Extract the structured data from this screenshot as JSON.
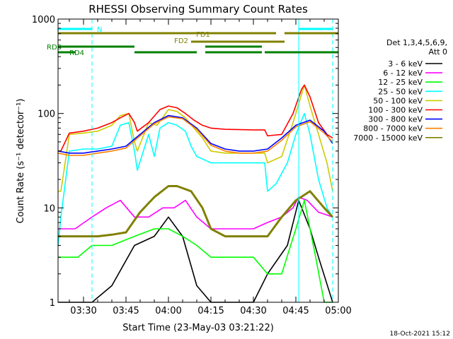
{
  "chart_data": {
    "type": "line",
    "title": "RHESSI Observing Summary Count Rates",
    "xlabel": "Start Time (23-May-03 03:21:22)",
    "ylabel": "Count Rate (s⁻¹ detector⁻¹)",
    "x_unit": "minutes",
    "xlim": [
      "03:21",
      "05:00"
    ],
    "ylim": [
      1,
      1000
    ],
    "yscale": "log",
    "x_ticks": [
      "03:30",
      "03:45",
      "04:00",
      "04:15",
      "04:30",
      "04:45",
      "05:00"
    ],
    "y_ticks": [
      "1",
      "10",
      "100",
      "1000"
    ],
    "legend_header": [
      "Det 1,3,4,5,6,9,",
      "Att 0"
    ],
    "legend_position": "right",
    "timestamp": "18-Oct-2021 15:12",
    "spans": [
      {
        "label": "N",
        "color": "#00ffff",
        "segments": [
          [
            "03:21",
            "03:33"
          ],
          [
            "04:46",
            "04:58"
          ]
        ],
        "vlines": [
          "03:21",
          "03:33",
          "04:46",
          "04:58"
        ]
      },
      {
        "label": "FD1",
        "color": "#808000",
        "segments": [
          [
            "03:21",
            "04:38"
          ],
          [
            "04:41",
            "05:00"
          ]
        ]
      },
      {
        "label": "FD2",
        "color": "#808000",
        "segments": [
          [
            "04:08",
            "04:41"
          ]
        ]
      },
      {
        "label": "RD8",
        "color": "#008000",
        "segments": [
          [
            "03:21",
            "03:48"
          ],
          [
            "04:13",
            "04:33"
          ]
        ]
      },
      {
        "label": "RD4",
        "color": "#008000",
        "segments": [
          [
            "03:21",
            "03:27"
          ],
          [
            "03:48",
            "04:10"
          ],
          [
            "04:13",
            "04:33"
          ],
          [
            "04:34",
            "05:00"
          ]
        ]
      }
    ],
    "series": [
      {
        "name": "3 - 6 keV",
        "color": "#000000",
        "x": [
          "03:21",
          "03:33",
          "03:40",
          "03:48",
          "03:55",
          "04:00",
          "04:05",
          "04:10",
          "04:15",
          "04:20",
          "04:30",
          "04:35",
          "04:42",
          "04:46",
          "04:50",
          "04:53",
          "04:58"
        ],
        "values": [
          1.0,
          1.0,
          1.5,
          4.0,
          5.0,
          8.0,
          5.0,
          1.5,
          1.0,
          1.0,
          1.0,
          2.0,
          4.0,
          12.0,
          6.0,
          3.0,
          1.0
        ]
      },
      {
        "name": "6 - 12 keV",
        "color": "#ff00ff",
        "x": [
          "03:21",
          "03:27",
          "03:33",
          "03:38",
          "03:43",
          "03:48",
          "03:53",
          "03:58",
          "04:02",
          "04:06",
          "04:10",
          "04:15",
          "04:20",
          "04:30",
          "04:35",
          "04:40",
          "04:44",
          "04:46",
          "04:49",
          "04:53",
          "04:58"
        ],
        "values": [
          6.0,
          6.0,
          8.0,
          10.0,
          12.0,
          8.0,
          8.0,
          10.0,
          10.0,
          12.0,
          8.0,
          6.0,
          6.0,
          6.0,
          7.0,
          8.0,
          10.0,
          13.0,
          12.0,
          9.0,
          8.0
        ]
      },
      {
        "name": "12 - 25 keV",
        "color": "#00ff00",
        "x": [
          "03:21",
          "03:28",
          "03:33",
          "03:40",
          "03:48",
          "03:55",
          "04:00",
          "04:05",
          "04:10",
          "04:15",
          "04:20",
          "04:30",
          "04:35",
          "04:40",
          "04:45",
          "04:48",
          "04:52",
          "04:55",
          "04:58"
        ],
        "values": [
          3.0,
          3.0,
          4.0,
          4.0,
          5.0,
          6.0,
          6.0,
          5.0,
          4.0,
          3.0,
          3.0,
          3.0,
          2.0,
          2.0,
          6.0,
          12.0,
          3.0,
          1.0,
          1.0
        ]
      },
      {
        "name": "25 - 50 keV",
        "color": "#00ffff",
        "x": [
          "03:21",
          "03:22",
          "03:25",
          "03:30",
          "03:35",
          "03:40",
          "03:43",
          "03:46",
          "03:48",
          "03:49",
          "03:53",
          "03:55",
          "03:57",
          "04:00",
          "04:03",
          "04:06",
          "04:08",
          "04:10",
          "04:13",
          "04:15",
          "04:20",
          "04:30",
          "04:34",
          "04:35",
          "04:38",
          "04:42",
          "04:45",
          "04:48",
          "04:50",
          "04:53",
          "04:56",
          "04:58"
        ],
        "values": [
          4.0,
          8.0,
          40.0,
          42.0,
          42.0,
          45.0,
          75.0,
          80.0,
          40.0,
          25.0,
          60.0,
          35.0,
          70.0,
          80.0,
          75.0,
          65.0,
          45.0,
          35.0,
          32.0,
          30.0,
          30.0,
          30.0,
          30.0,
          15.0,
          18.0,
          30.0,
          60.0,
          100.0,
          60.0,
          20.0,
          10.0,
          8.0
        ]
      },
      {
        "name": "50 - 100 keV",
        "color": "#cccc00",
        "x": [
          "03:21",
          "03:22",
          "03:25",
          "03:30",
          "03:35",
          "03:40",
          "03:43",
          "03:46",
          "03:48",
          "03:49",
          "03:53",
          "03:56",
          "04:00",
          "04:03",
          "04:06",
          "04:09",
          "04:12",
          "04:15",
          "04:20",
          "04:30",
          "04:34",
          "04:35",
          "04:40",
          "04:44",
          "04:48",
          "04:50",
          "04:53",
          "04:56",
          "04:58"
        ],
        "values": [
          15.0,
          15.0,
          60.0,
          62.0,
          65.0,
          75.0,
          95.0,
          100.0,
          50.0,
          40.0,
          80.0,
          75.0,
          110.0,
          105.0,
          90.0,
          70.0,
          55.0,
          40.0,
          38.0,
          38.0,
          38.0,
          30.0,
          35.0,
          80.0,
          200.0,
          120.0,
          60.0,
          30.0,
          15.0
        ]
      },
      {
        "name": "100 - 300 keV",
        "color": "#ff0000",
        "x": [
          "03:21",
          "03:22",
          "03:25",
          "03:30",
          "03:35",
          "03:40",
          "03:43",
          "03:46",
          "03:48",
          "03:49",
          "03:53",
          "03:57",
          "04:00",
          "04:03",
          "04:06",
          "04:09",
          "04:12",
          "04:15",
          "04:20",
          "04:30",
          "04:34",
          "04:35",
          "04:40",
          "04:44",
          "04:47",
          "04:48",
          "04:50",
          "04:53",
          "04:56",
          "04:58"
        ],
        "values": [
          40.0,
          40.0,
          62.0,
          65.0,
          70.0,
          80.0,
          90.0,
          100.0,
          80.0,
          65.0,
          80.0,
          110.0,
          120.0,
          115.0,
          100.0,
          85.0,
          75.0,
          70.0,
          68.0,
          67.0,
          67.0,
          58.0,
          60.0,
          100.0,
          180.0,
          200.0,
          150.0,
          80.0,
          60.0,
          55.0
        ]
      },
      {
        "name": "300 - 800 keV",
        "color": "#0000ff",
        "x": [
          "03:21",
          "03:25",
          "03:30",
          "03:35",
          "03:40",
          "03:45",
          "03:50",
          "03:55",
          "04:00",
          "04:05",
          "04:10",
          "04:15",
          "04:20",
          "04:25",
          "04:30",
          "04:35",
          "04:40",
          "04:45",
          "04:50",
          "04:55",
          "04:58"
        ],
        "values": [
          40.0,
          38.0,
          38.0,
          40.0,
          42.0,
          45.0,
          60.0,
          80.0,
          95.0,
          90.0,
          70.0,
          48.0,
          42.0,
          40.0,
          40.0,
          42.0,
          55.0,
          75.0,
          85.0,
          65.0,
          48.0
        ]
      },
      {
        "name": "800 - 7000 keV",
        "color": "#ff8000",
        "x": [
          "03:21",
          "03:25",
          "03:30",
          "03:35",
          "03:40",
          "03:45",
          "03:50",
          "03:55",
          "04:00",
          "04:05",
          "04:10",
          "04:15",
          "04:20",
          "04:25",
          "04:30",
          "04:35",
          "04:40",
          "04:45",
          "04:50",
          "04:55",
          "04:58"
        ],
        "values": [
          38.0,
          36.0,
          36.0,
          38.0,
          40.0,
          43.0,
          58.0,
          78.0,
          92.0,
          88.0,
          68.0,
          46.0,
          40.0,
          38.0,
          38.0,
          40.0,
          52.0,
          72.0,
          82.0,
          62.0,
          50.0
        ]
      },
      {
        "name": "7000 - 15000 keV",
        "color": "#808000",
        "x": [
          "03:21",
          "03:25",
          "03:30",
          "03:35",
          "03:40",
          "03:45",
          "03:50",
          "03:55",
          "04:00",
          "04:03",
          "04:08",
          "04:12",
          "04:15",
          "04:20",
          "04:30",
          "04:35",
          "04:40",
          "04:45",
          "04:50",
          "04:55",
          "04:58"
        ],
        "values": [
          5.0,
          5.0,
          5.0,
          5.0,
          5.2,
          5.5,
          9.0,
          13.0,
          17.0,
          17.0,
          15.0,
          10.0,
          6.0,
          5.0,
          5.0,
          5.0,
          8.0,
          12.0,
          15.0,
          10.0,
          8.0
        ]
      }
    ]
  }
}
